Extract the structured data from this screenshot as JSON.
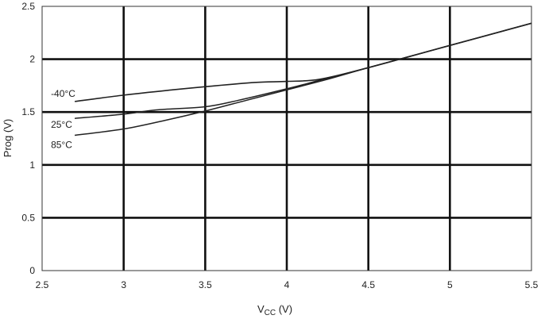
{
  "chart_data": {
    "type": "line",
    "xlabel": "VCC (V)",
    "xlabel_main": "V",
    "xlabel_sub": "CC",
    "xlabel_unit": " (V)",
    "ylabel": "Prog (V)",
    "xlim": [
      2.5,
      5.5
    ],
    "ylim": [
      0,
      2.5
    ],
    "xticks": [
      2.5,
      3,
      3.5,
      4,
      4.5,
      5,
      5.5
    ],
    "xtick_labels": [
      "2.5",
      "3",
      "3.5",
      "4",
      "4.5",
      "5",
      "5.5"
    ],
    "yticks": [
      0,
      0.5,
      1,
      1.5,
      2,
      2.5
    ],
    "ytick_labels": [
      "0",
      "0.5",
      "1",
      "1.5",
      "2",
      "2.5"
    ],
    "grid": true,
    "series": [
      {
        "name": "-40°C",
        "x": [
          2.7,
          3.0,
          3.3,
          3.5,
          3.8,
          4.0,
          4.2,
          4.5,
          5.0,
          5.5
        ],
        "y": [
          1.6,
          1.66,
          1.71,
          1.74,
          1.78,
          1.79,
          1.81,
          1.92,
          2.13,
          2.34
        ]
      },
      {
        "name": "25°C",
        "x": [
          2.7,
          3.0,
          3.2,
          3.5,
          3.7,
          4.0,
          4.2,
          4.5,
          5.0,
          5.5
        ],
        "y": [
          1.44,
          1.48,
          1.52,
          1.55,
          1.61,
          1.72,
          1.8,
          1.92,
          2.13,
          2.34
        ]
      },
      {
        "name": "85°C",
        "x": [
          2.7,
          3.0,
          3.25,
          3.5,
          3.75,
          4.0,
          4.25,
          4.5,
          5.0,
          5.5
        ],
        "y": [
          1.28,
          1.34,
          1.42,
          1.51,
          1.61,
          1.71,
          1.81,
          1.92,
          2.13,
          2.34
        ]
      }
    ]
  }
}
